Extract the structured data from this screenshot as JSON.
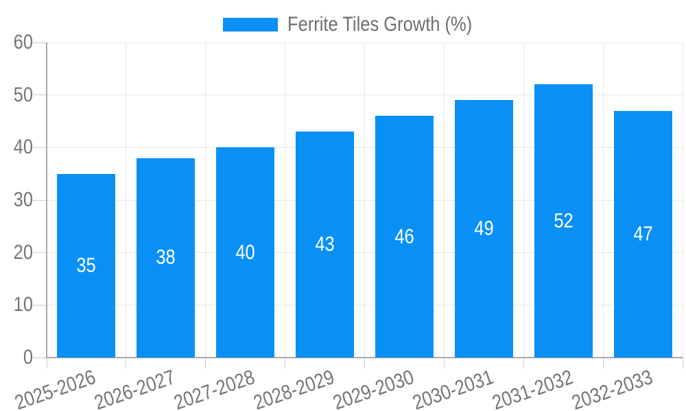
{
  "legend": {
    "items": [
      {
        "label": "Ferrite Tiles Growth (%)",
        "color": "#0a90f5"
      }
    ]
  },
  "chart_data": {
    "type": "bar",
    "title": "",
    "xlabel": "",
    "ylabel": "",
    "categories": [
      "2025-2026",
      "2026-2027",
      "2027-2028",
      "2028-2029",
      "2029-2030",
      "2030-2031",
      "2031-2032",
      "2032-2033"
    ],
    "series": [
      {
        "name": "Ferrite Tiles Growth (%)",
        "color": "#0a90f5",
        "values": [
          35,
          38,
          40,
          43,
          46,
          49,
          52,
          47
        ]
      }
    ],
    "value_labels": "inside-center",
    "value_label_color": "#ffffff",
    "ylim": [
      0,
      60
    ],
    "yticks": [
      0,
      10,
      20,
      30,
      40,
      50,
      60
    ],
    "grid": true,
    "legend_position": "top-center",
    "x_tick_rotation_deg": -19
  },
  "colors": {
    "bar": "#0a90f5",
    "grid_line": "#e6e6e6",
    "axis_line": "#a8a8a8",
    "tick_line": "#cccccc",
    "tick_label": "#757575",
    "legend_text": "#6e6e6e",
    "background": "#ffffff"
  }
}
